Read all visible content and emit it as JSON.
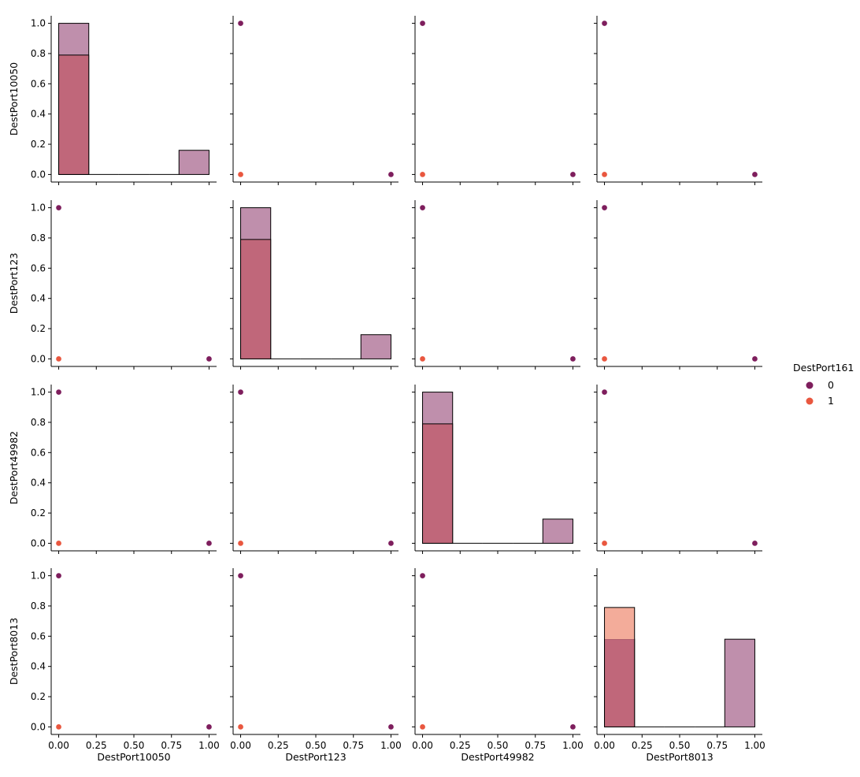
{
  "chart_data": {
    "type": "pairplot",
    "variables": [
      "DestPort10050",
      "DestPort123",
      "DestPort49982",
      "DestPort8013"
    ],
    "hue": {
      "title": "DestPort161",
      "levels": [
        "0",
        "1"
      ],
      "colors": [
        "#7e1e5d",
        "#e9573f"
      ],
      "hist_fill_colors": [
        "#bf8fac",
        "#f3ac9a"
      ],
      "overlap_color": "#c0677a"
    },
    "axis_range": [
      -0.05,
      1.05
    ],
    "ticks": [
      0.0,
      0.2,
      0.4,
      0.6,
      0.8,
      1.0
    ],
    "tick_labels": [
      "0.0",
      "0.2",
      "0.4",
      "0.6",
      "0.8",
      "1.0"
    ],
    "x_ticks": [
      0.0,
      0.25,
      0.5,
      0.75,
      1.0
    ],
    "x_tick_labels": [
      "0.00",
      "0.25",
      "0.50",
      "0.75",
      "1.00"
    ],
    "hist_bins": [
      0.0,
      0.2,
      0.4,
      0.6,
      0.8,
      1.0
    ],
    "diagonal_histograms": [
      {
        "variable": "DestPort10050",
        "hue0": [
          1.0,
          0,
          0,
          0,
          0.16
        ],
        "hue1": [
          0.79,
          0,
          0,
          0,
          0
        ]
      },
      {
        "variable": "DestPort123",
        "hue0": [
          1.0,
          0,
          0,
          0,
          0.16
        ],
        "hue1": [
          0.79,
          0,
          0,
          0,
          0
        ]
      },
      {
        "variable": "DestPort49982",
        "hue0": [
          1.0,
          0,
          0,
          0,
          0.16
        ],
        "hue1": [
          0.79,
          0,
          0,
          0,
          0
        ]
      },
      {
        "variable": "DestPort8013",
        "hue0": [
          0.58,
          0,
          0,
          0,
          0.58
        ],
        "hue1": [
          0.79,
          0,
          0,
          0,
          0
        ]
      }
    ],
    "scatter_points": [
      {
        "x": 0,
        "y": 1,
        "hue": "0"
      },
      {
        "x": 1,
        "y": 0,
        "hue": "0"
      },
      {
        "x": 0,
        "y": 0,
        "hue": "1"
      }
    ],
    "legend": {
      "title": "DestPort161",
      "entries": [
        "0",
        "1"
      ],
      "position": "right"
    }
  }
}
